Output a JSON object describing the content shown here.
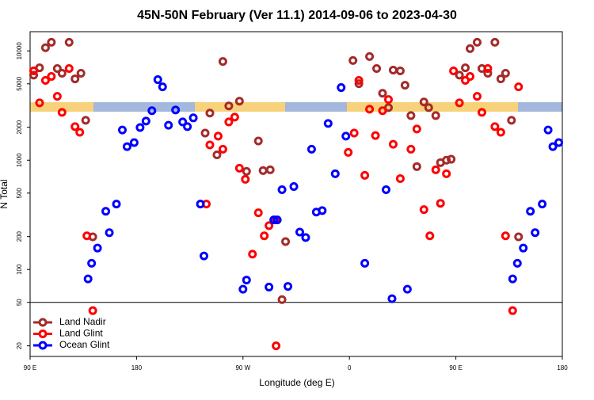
{
  "chart_data": {
    "type": "scatter",
    "title": "45N-50N February (Ver 11.1)   2014-09-06 to 2023-04-30",
    "x_label": "Longitude (deg E)",
    "y_label": "N Total",
    "xlim": [
      90,
      540
    ],
    "xticks": [
      {
        "value": 90,
        "label": "90 E"
      },
      180,
      {
        "value": 270,
        "label": "90 W"
      },
      {
        "value": 360,
        "label": "0"
      },
      {
        "value": 450,
        "label": "90 E"
      },
      {
        "value": 540,
        "label": "180"
      }
    ],
    "ylim": [
      16,
      15000
    ],
    "log_y": true,
    "yticks": [
      20,
      50,
      100,
      200,
      500,
      1000,
      2000,
      5000,
      10000
    ],
    "reference_line": 50,
    "legend": "bottom-left",
    "series": [
      {
        "name": "Land Nadir",
        "color": "#a52a2a",
        "x": [
          93,
          98,
          103,
          108,
          113,
          117,
          123,
          128,
          133,
          137,
          143,
          253,
          258,
          242,
          238,
          248,
          267,
          283,
          273,
          287,
          293,
          303,
          306,
          363,
          368,
          377,
          383,
          388,
          393,
          397,
          403,
          407,
          412,
          417,
          423,
          427,
          433,
          437,
          442,
          446,
          453,
          458,
          462,
          468,
          472,
          477,
          483,
          488,
          492,
          497,
          503
        ],
        "values": [
          6000,
          7000,
          10700,
          12000,
          6900,
          6250,
          12000,
          5550,
          6250,
          2320,
          199,
          8000,
          3140,
          2700,
          1770,
          1120,
          3470,
          1500,
          790,
          804,
          817,
          53,
          180,
          8170,
          5020,
          8890,
          6900,
          4100,
          3030,
          6680,
          6570,
          4850,
          2560,
          874,
          3410,
          3030,
          2560,
          950,
          1000,
          1020,
          6000,
          7000,
          10500,
          12000,
          6900,
          6250,
          12000,
          5550,
          6250,
          2320,
          199
        ]
      },
      {
        "name": "Land Glint",
        "color": "#ff0000",
        "x": [
          93,
          98,
          103,
          108,
          113,
          117,
          123,
          128,
          132,
          138,
          143,
          239,
          242,
          249,
          253,
          258,
          263,
          267,
          272,
          278,
          283,
          288,
          292,
          297,
          298,
          359,
          364,
          368,
          373,
          377,
          382,
          388,
          393,
          397,
          403,
          412,
          417,
          423,
          428,
          433,
          437,
          442,
          448,
          453,
          458,
          462,
          468,
          472,
          477,
          483,
          488,
          492,
          498,
          503
        ],
        "values": [
          6570,
          3350,
          5370,
          5840,
          3840,
          2740,
          6900,
          2030,
          1800,
          203,
          42,
          397,
          1380,
          1660,
          1260,
          2240,
          2480,
          845,
          668,
          138,
          330,
          203,
          252,
          284,
          20,
          1180,
          1770,
          5370,
          727,
          2930,
          1680,
          2840,
          3590,
          1400,
          679,
          1260,
          1930,
          353,
          203,
          817,
          403,
          751,
          6570,
          3350,
          5370,
          5840,
          3840,
          2740,
          6900,
          2030,
          1800,
          203,
          42,
          4690
        ]
      },
      {
        "name": "Ocean Glint",
        "color": "#0000ff",
        "x": [
          139,
          142,
          147,
          154,
          157,
          163,
          168,
          172,
          178,
          183,
          188,
          193,
          198,
          202,
          207,
          213,
          219,
          223,
          228,
          234,
          237,
          270,
          273,
          292,
          296,
          299,
          303,
          308,
          313,
          318,
          323,
          328,
          332,
          337,
          342,
          348,
          353,
          357,
          373,
          391,
          396,
          409,
          498,
          502,
          507,
          513,
          517,
          523,
          528,
          532,
          537
        ],
        "values": [
          82,
          114,
          157,
          341,
          217,
          397,
          1890,
          1330,
          1450,
          1990,
          2280,
          2840,
          5460,
          4690,
          2090,
          2880,
          2240,
          2030,
          2440,
          397,
          133,
          66,
          80,
          69,
          284,
          284,
          537,
          70,
          574,
          220,
          196,
          1260,
          335,
          346,
          2170,
          751,
          4620,
          1660,
          114,
          537,
          54,
          66,
          82,
          114,
          157,
          341,
          217,
          397,
          1890,
          1330,
          1450
        ]
      }
    ]
  }
}
